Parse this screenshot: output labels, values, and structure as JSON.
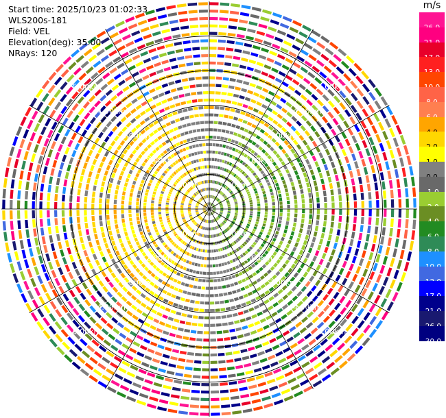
{
  "header": {
    "start_time": "Start time: 2025/10/23 01:02:33",
    "station": "WLS200s-181",
    "field": "Field: VEL",
    "elevation": "Elevation(deg): 35.00",
    "nrays": "NRays: 120"
  },
  "colorbar": {
    "unit": "m/s",
    "levels": [
      {
        "label": "26.0",
        "color": "#ff1493"
      },
      {
        "label": "21.0",
        "color": "#ff0080"
      },
      {
        "label": "17.0",
        "color": "#e8002a"
      },
      {
        "label": "13.0",
        "color": "#ff2020"
      },
      {
        "label": "10.0",
        "color": "#ff4500"
      },
      {
        "label": "8.0",
        "color": "#ff6347"
      },
      {
        "label": "6.0",
        "color": "#ff7f50"
      },
      {
        "label": "4.0",
        "color": "#ffa500"
      },
      {
        "label": "2.0",
        "color": "#ffd700"
      },
      {
        "label": "1.0",
        "color": "#ffff00"
      },
      {
        "label": "0.0",
        "color": "#808080"
      },
      {
        "label": "-1.0",
        "color": "#696969"
      },
      {
        "label": "-2.0",
        "color": "#9acd32"
      },
      {
        "label": "-4.0",
        "color": "#6b8e23"
      },
      {
        "label": "-6.0",
        "color": "#228b22"
      },
      {
        "label": "-8.0",
        "color": "#2e8b57"
      },
      {
        "label": "-10.0",
        "color": "#1e90ff"
      },
      {
        "label": "-13.0",
        "color": "#4169e1"
      },
      {
        "label": "-17.0",
        "color": "#0000ff"
      },
      {
        "label": "-21.0",
        "color": "#00008b"
      },
      {
        "label": "-26.0",
        "color": "#191970"
      },
      {
        "label": "-30.0",
        "color": "#000080"
      }
    ]
  },
  "chart_data": {
    "type": "heatmap",
    "projection": "polar PPI",
    "field": "VEL",
    "units": "m/s",
    "elevation_deg": 35.0,
    "n_rays": 120,
    "max_range_km": 6.0,
    "range_rings_km": [
      1.0,
      2.0,
      3.0,
      4.0,
      5.0
    ],
    "ring_labels": [
      "1.00km",
      "2.00km",
      "3.00km",
      "4.00km",
      "5.00km"
    ],
    "gridlines": "every 30 deg azimuth",
    "pattern": {
      "west_sector_color": "yellow/gold (positive 1-4 m/s)",
      "east_sector_color": "green (negative -1 to -4 m/s)",
      "north_south_color": "gray (near 0 m/s)",
      "outer_ring_noise": "random multicolor beyond ~4 km"
    }
  }
}
